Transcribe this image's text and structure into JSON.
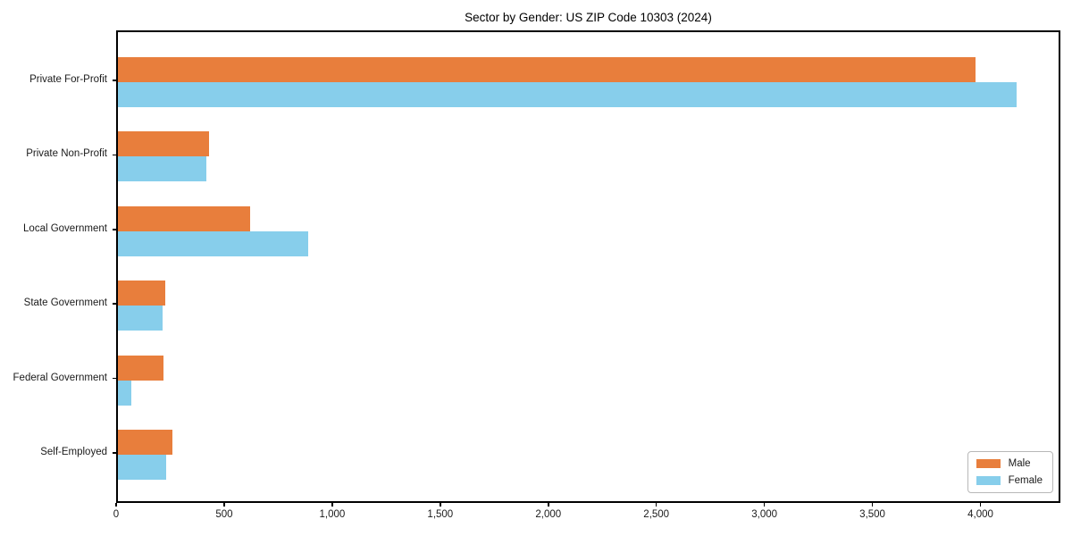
{
  "chart_data": {
    "type": "bar",
    "orientation": "horizontal",
    "title": "Sector by Gender: US ZIP Code 10303 (2024)",
    "categories": [
      "Private For-Profit",
      "Private Non-Profit",
      "Local Government",
      "State Government",
      "Federal Government",
      "Self-Employed"
    ],
    "series": [
      {
        "name": "Male",
        "color": "#e87e3c",
        "values": [
          3970,
          420,
          610,
          220,
          210,
          250
        ]
      },
      {
        "name": "Female",
        "color": "#87ceeb",
        "values": [
          4160,
          410,
          880,
          205,
          60,
          225
        ]
      }
    ],
    "xlabel": "",
    "ylabel": "",
    "xlim": [
      0,
      4370
    ],
    "xticks": [
      0,
      500,
      1000,
      1500,
      2000,
      2500,
      3000,
      3500,
      4000
    ],
    "xtick_labels": [
      "0",
      "500",
      "1,000",
      "1,500",
      "2,000",
      "2,500",
      "3,000",
      "3,500",
      "4,000"
    ],
    "grid": false,
    "legend": {
      "position": "lower right"
    },
    "axis_color": "#000000"
  }
}
